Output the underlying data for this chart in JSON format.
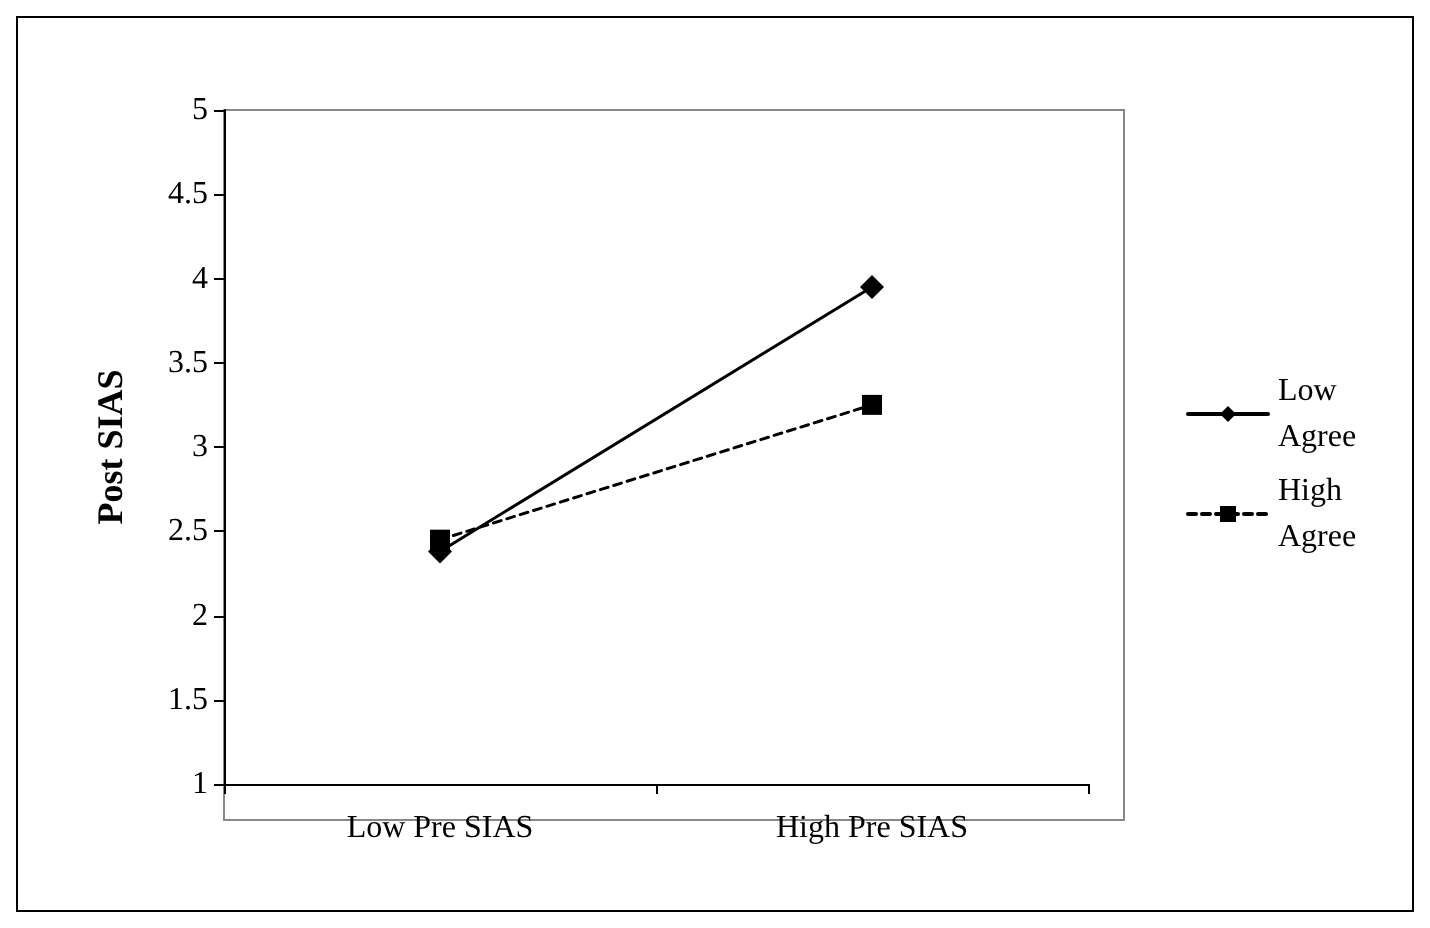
{
  "chart_data": {
    "type": "line",
    "ylabel": "Post SIAS",
    "categories": [
      "Low Pre SIAS",
      "High Pre SIAS"
    ],
    "series": [
      {
        "name": "Low Agree",
        "color": "#000000",
        "values": [
          2.38,
          3.95
        ],
        "marker": "diamond",
        "line_style": "solid"
      },
      {
        "name": "High Agree",
        "color": "#000000",
        "values": [
          2.45,
          3.25
        ],
        "marker": "square",
        "line_style": "dashed"
      }
    ],
    "ylim": [
      1,
      5
    ],
    "yticks": [
      1,
      1.5,
      2,
      2.5,
      3,
      3.5,
      4,
      4.5,
      5
    ],
    "grid": false,
    "legend": "right"
  }
}
